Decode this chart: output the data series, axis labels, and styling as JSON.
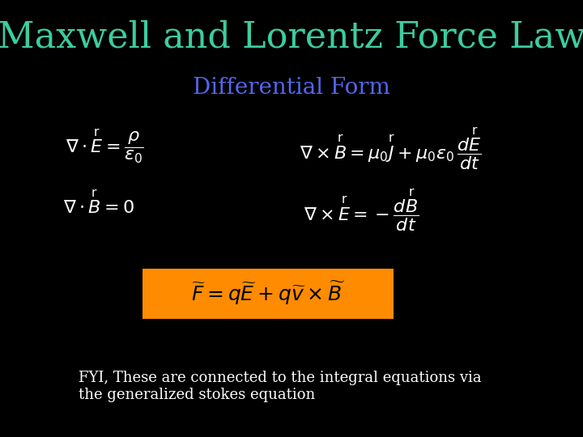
{
  "title": "Maxwell and Lorentz Force Law",
  "title_color": "#3DCCA0",
  "title_fontsize": 32,
  "subtitle": "Differential Form",
  "subtitle_color": "#5566EE",
  "subtitle_fontsize": 20,
  "background_color": "#000000",
  "eq_color": "#FFFFFF",
  "eq_fontsize": 16,
  "lorentz_box_color": "#FF8C00",
  "lorentz_fontsize": 18,
  "lorentz_text_color": "#000000",
  "fyi_text": "FYI, These are connected to the integral equations via\nthe generalized stokes equation",
  "fyi_color": "#FFFFFF",
  "fyi_fontsize": 13
}
